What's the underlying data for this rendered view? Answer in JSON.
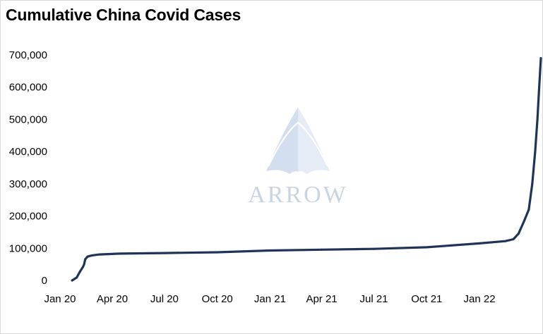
{
  "chart_data": {
    "type": "line",
    "title": "Cumulative China Covid Cases",
    "xlabel": "",
    "ylabel": "",
    "ylim": [
      0,
      700000
    ],
    "yticks": [
      0,
      100000,
      200000,
      300000,
      400000,
      500000,
      600000,
      700000
    ],
    "ytick_labels": [
      "0",
      "100,000",
      "200,000",
      "300,000",
      "400,000",
      "500,000",
      "600,000",
      "700,000"
    ],
    "xlim": [
      "2020-01-01",
      "2022-04-18"
    ],
    "xticks": [
      "2020-01-01",
      "2020-04-01",
      "2020-07-01",
      "2020-10-01",
      "2021-01-01",
      "2021-04-01",
      "2021-07-01",
      "2021-10-01",
      "2022-01-01"
    ],
    "xtick_labels": [
      "Jan 20",
      "Apr 20",
      "Jul 20",
      "Oct 20",
      "Jan 21",
      "Apr 21",
      "Jul 21",
      "Oct 21",
      "Jan 22"
    ],
    "grid": false,
    "legend": "none",
    "series": [
      {
        "color": "#1f3457",
        "points": [
          [
            "2020-01-22",
            0
          ],
          [
            "2020-01-30",
            9000
          ],
          [
            "2020-02-05",
            28000
          ],
          [
            "2020-02-10",
            42000
          ],
          [
            "2020-02-12",
            50000
          ],
          [
            "2020-02-14",
            66000
          ],
          [
            "2020-02-18",
            74000
          ],
          [
            "2020-02-25",
            77500
          ],
          [
            "2020-03-10",
            80700
          ],
          [
            "2020-04-15",
            83400
          ],
          [
            "2020-07-01",
            85000
          ],
          [
            "2020-10-01",
            87500
          ],
          [
            "2021-01-01",
            93000
          ],
          [
            "2021-04-01",
            95500
          ],
          [
            "2021-07-01",
            98000
          ],
          [
            "2021-10-01",
            103000
          ],
          [
            "2022-01-01",
            115000
          ],
          [
            "2022-02-15",
            122000
          ],
          [
            "2022-03-01",
            128000
          ],
          [
            "2022-03-10",
            145000
          ],
          [
            "2022-03-20",
            185000
          ],
          [
            "2022-03-28",
            220000
          ],
          [
            "2022-04-03",
            300000
          ],
          [
            "2022-04-08",
            400000
          ],
          [
            "2022-04-12",
            500000
          ],
          [
            "2022-04-15",
            600000
          ],
          [
            "2022-04-18",
            690000
          ]
        ]
      }
    ]
  },
  "watermark": {
    "text": "ARROW",
    "color": "#c9d3e2"
  }
}
